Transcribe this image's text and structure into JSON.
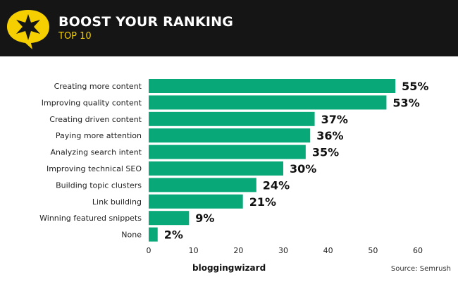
{
  "header": {
    "title": "BOOST YOUR RANKING",
    "subtitle": "TOP 10"
  },
  "footer": {
    "brand": "bloggingwizard",
    "source": "Source: Semrush"
  },
  "colors": {
    "bar": "#08a878",
    "header_bg": "#151515",
    "accent": "#f5cf00"
  },
  "chart_data": {
    "type": "bar",
    "orientation": "horizontal",
    "categories": [
      "Creating more content",
      "Improving quality content",
      "Creating driven content",
      "Paying more attention",
      "Analyzing search intent",
      "Improving technical SEO",
      "Building topic clusters",
      "Link building",
      "Winning featured snippets",
      "None"
    ],
    "values": [
      55,
      53,
      37,
      36,
      35,
      30,
      24,
      21,
      9,
      2
    ],
    "data_labels": [
      "55%",
      "53%",
      "37%",
      "36%",
      "35%",
      "30%",
      "24%",
      "21%",
      "9%",
      "2%"
    ],
    "xlim": [
      0,
      60
    ],
    "xticks": [
      0,
      10,
      20,
      30,
      40,
      50,
      60
    ],
    "grid": false
  }
}
